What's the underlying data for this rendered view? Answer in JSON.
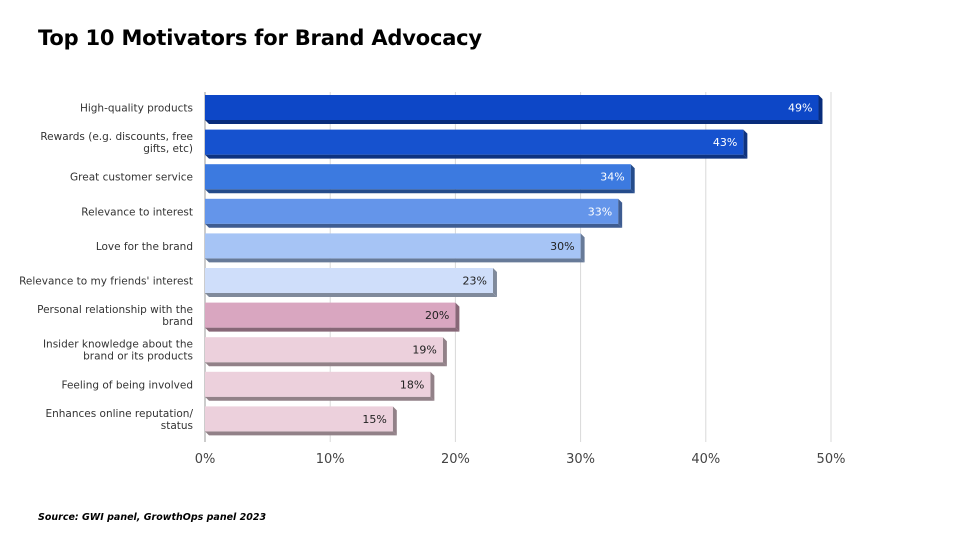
{
  "title": "Top 10 Motivators for Brand Advocacy",
  "source": "Source: GWI panel, GrowthOps panel 2023",
  "chart_data": {
    "type": "bar",
    "orientation": "horizontal",
    "title": "Top 10 Motivators for Brand Advocacy",
    "xlabel": "",
    "ylabel": "",
    "categories": [
      [
        "High-quality products"
      ],
      [
        "Rewards (e.g. discounts, free",
        "gifts, etc)"
      ],
      [
        "Great customer service"
      ],
      [
        "Relevance to interest"
      ],
      [
        "Love for the brand"
      ],
      [
        "Relevance to my friends' interest"
      ],
      [
        "Personal relationship with the",
        "brand"
      ],
      [
        "Insider knowledge about the",
        "brand or its products"
      ],
      [
        "Feeling of being involved"
      ],
      [
        "Enhances online reputation/",
        "status"
      ]
    ],
    "values": [
      49,
      43,
      34,
      33,
      30,
      23,
      20,
      19,
      18,
      15
    ],
    "value_labels": [
      "49%",
      "43%",
      "34%",
      "33%",
      "30%",
      "23%",
      "20%",
      "19%",
      "18%",
      "15%"
    ],
    "bar_colors": [
      "#0d47c7",
      "#1652cf",
      "#3c7ae0",
      "#6495ea",
      "#a6c4f5",
      "#cfdefa",
      "#d9a6c0",
      "#ecd0dc",
      "#ecd0dc",
      "#ecd0dc"
    ],
    "label_colors": [
      "#ffffff",
      "#ffffff",
      "#ffffff",
      "#ffffff",
      "#222222",
      "#222222",
      "#222222",
      "#222222",
      "#222222",
      "#222222"
    ],
    "xlim": [
      0,
      50
    ],
    "xticks": [
      0,
      10,
      20,
      30,
      40,
      50
    ],
    "xtick_labels": [
      "0%",
      "10%",
      "20%",
      "30%",
      "40%",
      "50%"
    ],
    "grid": true,
    "legend": "none"
  }
}
